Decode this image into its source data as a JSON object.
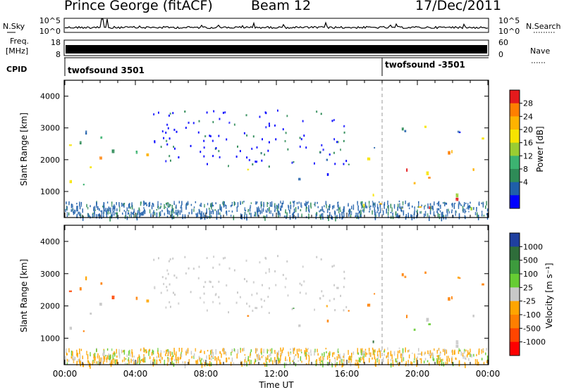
{
  "header": {
    "station": "Prince George (fitACF)",
    "beam": "Beam 12",
    "date": "17/Dec/2011"
  },
  "sky_panel": {
    "left_label": "N.Sky",
    "right_label": "N.Search",
    "left_ticks": [
      "10^5",
      "10^0"
    ],
    "right_ticks": [
      "10^5",
      "10^0"
    ]
  },
  "freq_panel": {
    "left_label_line1": "Freq.",
    "left_label_line2": "[MHz]",
    "right_label": "Nave",
    "left_ticks": [
      "18",
      "8"
    ],
    "right_ticks": [
      "60",
      "0"
    ]
  },
  "cpid_panel": {
    "label": "CPID",
    "programs": [
      {
        "name": "twofsound 3501",
        "start_hour": 0
      },
      {
        "name": "twofsound -3501",
        "start_hour": 18
      }
    ]
  },
  "chart_data": [
    {
      "type": "heatmap",
      "name": "power",
      "ylabel": "Slant Range [km]",
      "colorbar_label": "Power [dB]",
      "colorbar_ticks": [
        "28",
        "24",
        "20",
        "16",
        "12",
        "8",
        "4"
      ],
      "colorbar_colors": [
        "#e41a1c",
        "#ff7f00",
        "#ffb300",
        "#f7e400",
        "#9acd32",
        "#3cb371",
        "#2e8b57",
        "#1f5faa",
        "#0000ff"
      ],
      "ylim": [
        180,
        4500
      ],
      "yticks": [
        1000,
        2000,
        3000,
        4000
      ],
      "xlim": [
        0,
        24
      ],
      "regions": [
        {
          "t0": 0.1,
          "t1": 2.6,
          "r0": 550,
          "r1": 3300,
          "level": 0.7
        },
        {
          "t0": 2.6,
          "t1": 5.0,
          "r0": 1100,
          "r1": 2300,
          "level": 0.6
        },
        {
          "t0": 5.3,
          "t1": 6.3,
          "r0": 1350,
          "r1": 1750,
          "level": 0.45
        },
        {
          "t0": 10.2,
          "t1": 13.8,
          "r0": 1300,
          "r1": 2000,
          "level": 0.5
        },
        {
          "t0": 13.8,
          "t1": 15.3,
          "r0": 1500,
          "r1": 2400,
          "level": 0.3
        },
        {
          "t0": 15.8,
          "t1": 24.0,
          "r0": 400,
          "r1": 3100,
          "level": 0.75
        }
      ]
    },
    {
      "type": "heatmap",
      "name": "velocity",
      "ylabel": "Slant Range [km]",
      "colorbar_label": "Velocity [m s⁻¹]",
      "colorbar_ticks": [
        "1000",
        "500",
        "100",
        "25",
        "-25",
        "-100",
        "-500",
        "-1000"
      ],
      "colorbar_colors": [
        "#1f3f9f",
        "#2e6d3a",
        "#3d9b3d",
        "#66cc33",
        "#c8c8c8",
        "#ffa500",
        "#ff7f00",
        "#ff4500",
        "#ff0000"
      ],
      "ylim": [
        180,
        4500
      ],
      "yticks": [
        1000,
        2000,
        3000,
        4000
      ],
      "xlim": [
        0,
        24
      ],
      "xticks": [
        "00:00",
        "04:00",
        "08:00",
        "12:00",
        "16:00",
        "20:00",
        "00:00"
      ],
      "xlabel": "Time UT"
    }
  ]
}
